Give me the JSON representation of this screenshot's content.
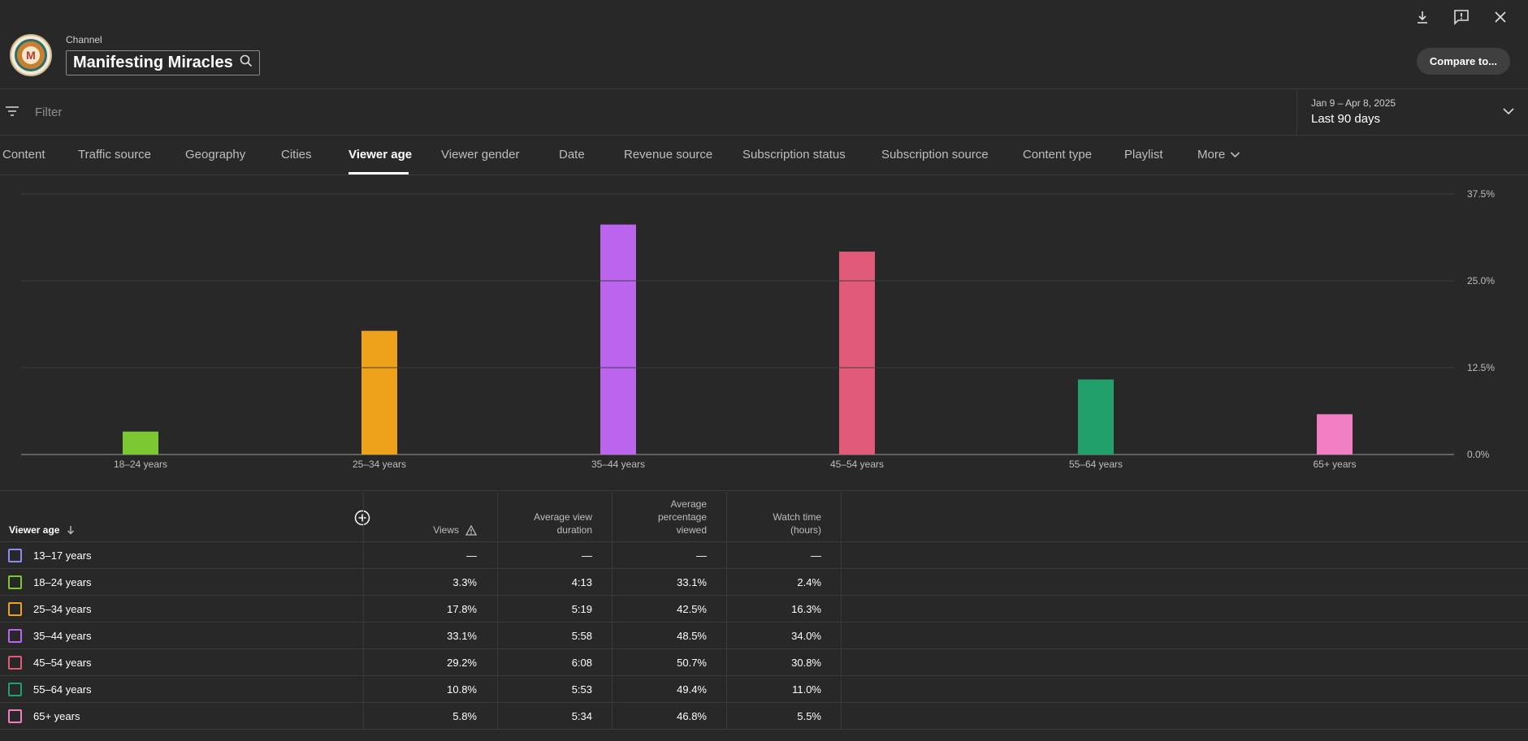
{
  "header": {
    "channel_label": "Channel",
    "channel_name": "Manifesting Miracles",
    "compare_label": "Compare to..."
  },
  "filter": {
    "placeholder": "Filter",
    "date_range": "Jan 9 – Apr 8, 2025",
    "period": "Last 90 days"
  },
  "tabs": [
    {
      "label": "Content"
    },
    {
      "label": "Traffic source"
    },
    {
      "label": "Geography"
    },
    {
      "label": "Cities"
    },
    {
      "label": "Viewer age"
    },
    {
      "label": "Viewer gender"
    },
    {
      "label": "Date"
    },
    {
      "label": "Revenue source"
    },
    {
      "label": "Subscription status"
    },
    {
      "label": "Subscription source"
    },
    {
      "label": "Content type"
    },
    {
      "label": "Playlist"
    },
    {
      "label": "More"
    }
  ],
  "active_tab": "Viewer age",
  "chart_data": {
    "type": "bar",
    "categories": [
      "18–24 years",
      "25–34 years",
      "35–44 years",
      "45–54 years",
      "55–64 years",
      "65+ years"
    ],
    "values": [
      3.3,
      17.8,
      33.1,
      29.2,
      10.8,
      5.8
    ],
    "colors": [
      "#7cc832",
      "#eea21c",
      "#bb65ef",
      "#e15b78",
      "#22a06c",
      "#f17dc2"
    ],
    "ylim": [
      0,
      37.5
    ],
    "yticks": [
      "0.0%",
      "12.5%",
      "25.0%",
      "37.5%"
    ],
    "grid": true
  },
  "table": {
    "columns": {
      "age": "Viewer age",
      "views": "Views",
      "avg_duration": "Average view duration",
      "avg_pct": "Average percentage viewed",
      "watch_time": "Watch time (hours)"
    },
    "rows": [
      {
        "label": "13–17 years",
        "color": "#8b8cf0",
        "views": "—",
        "avg_duration": "—",
        "avg_pct": "—",
        "watch_time": "—"
      },
      {
        "label": "18–24 years",
        "color": "#7cc832",
        "views": "3.3%",
        "avg_duration": "4:13",
        "avg_pct": "33.1%",
        "watch_time": "2.4%"
      },
      {
        "label": "25–34 years",
        "color": "#eea21c",
        "views": "17.8%",
        "avg_duration": "5:19",
        "avg_pct": "42.5%",
        "watch_time": "16.3%"
      },
      {
        "label": "35–44 years",
        "color": "#bb65ef",
        "views": "33.1%",
        "avg_duration": "5:58",
        "avg_pct": "48.5%",
        "watch_time": "34.0%"
      },
      {
        "label": "45–54 years",
        "color": "#e15b78",
        "views": "29.2%",
        "avg_duration": "6:08",
        "avg_pct": "50.7%",
        "watch_time": "30.8%"
      },
      {
        "label": "55–64 years",
        "color": "#22a06c",
        "views": "10.8%",
        "avg_duration": "5:53",
        "avg_pct": "49.4%",
        "watch_time": "11.0%"
      },
      {
        "label": "65+ years",
        "color": "#f17dc2",
        "views": "5.8%",
        "avg_duration": "5:34",
        "avg_pct": "46.8%",
        "watch_time": "5.5%"
      }
    ]
  }
}
